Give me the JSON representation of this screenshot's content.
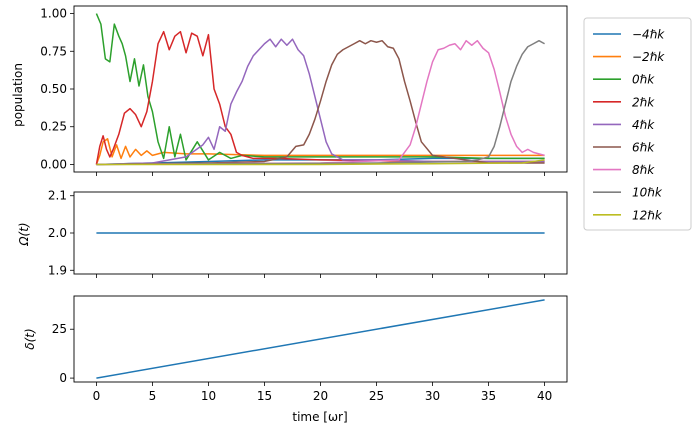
{
  "chart_data": [
    {
      "type": "line",
      "ylabel": "population",
      "xlim": [
        -2,
        42
      ],
      "ylim": [
        -0.05,
        1.05
      ],
      "xticks": [
        0,
        5,
        10,
        15,
        20,
        25,
        30,
        35,
        40
      ],
      "yticks": [
        0.0,
        0.25,
        0.5,
        0.75,
        1.0
      ],
      "ytick_labels": [
        "0.00",
        "0.25",
        "0.50",
        "0.75",
        "1.00"
      ],
      "legend_position": "outside right, top",
      "series": [
        {
          "name": "−4ℏk",
          "color": "#1f77b4",
          "x": [
            0,
            5,
            10,
            15,
            20,
            25,
            30,
            35,
            40
          ],
          "y": [
            0,
            0.01,
            0.02,
            0.03,
            0.03,
            0.03,
            0.04,
            0.04,
            0.04
          ]
        },
        {
          "name": "−2ℏk",
          "color": "#ff7f0e",
          "x": [
            0,
            0.3,
            0.6,
            1.0,
            1.4,
            1.8,
            2.2,
            2.6,
            3.0,
            3.5,
            4.0,
            4.5,
            5.0,
            6,
            8,
            10,
            15,
            20,
            25,
            30,
            35,
            40
          ],
          "y": [
            0,
            0.06,
            0.15,
            0.17,
            0.05,
            0.13,
            0.04,
            0.12,
            0.05,
            0.1,
            0.06,
            0.09,
            0.06,
            0.08,
            0.07,
            0.07,
            0.06,
            0.06,
            0.06,
            0.06,
            0.06,
            0.06
          ]
        },
        {
          "name": "0ℏk",
          "color": "#2ca02c",
          "x": [
            0,
            0.4,
            0.8,
            1.2,
            1.6,
            2.0,
            2.3,
            2.6,
            3.0,
            3.4,
            3.8,
            4.2,
            4.6,
            5.0,
            5.5,
            6.0,
            6.5,
            7.0,
            7.5,
            8,
            9,
            10,
            11,
            12,
            13,
            15,
            20,
            25,
            30,
            35,
            40
          ],
          "y": [
            1.0,
            0.93,
            0.7,
            0.68,
            0.93,
            0.85,
            0.8,
            0.72,
            0.55,
            0.7,
            0.52,
            0.66,
            0.45,
            0.35,
            0.15,
            0.04,
            0.25,
            0.05,
            0.2,
            0.03,
            0.15,
            0.03,
            0.08,
            0.04,
            0.06,
            0.05,
            0.05,
            0.05,
            0.05,
            0.04,
            0.04
          ]
        },
        {
          "name": "2ℏk",
          "color": "#d62728",
          "x": [
            0,
            0.3,
            0.6,
            0.9,
            1.2,
            1.5,
            2,
            2.5,
            3.0,
            3.5,
            4.0,
            4.5,
            5.0,
            5.5,
            6.0,
            6.5,
            7.0,
            7.5,
            8.0,
            8.5,
            9.0,
            9.5,
            10.0,
            10.5,
            11.0,
            11.5,
            12.0,
            12.5,
            13,
            14,
            16,
            20,
            30,
            40
          ],
          "y": [
            0,
            0.12,
            0.19,
            0.1,
            0.05,
            0.1,
            0.2,
            0.34,
            0.37,
            0.33,
            0.25,
            0.35,
            0.55,
            0.8,
            0.88,
            0.76,
            0.85,
            0.88,
            0.74,
            0.87,
            0.85,
            0.72,
            0.86,
            0.5,
            0.4,
            0.25,
            0.2,
            0.08,
            0.06,
            0.04,
            0.04,
            0.03,
            0.02,
            0.02
          ]
        },
        {
          "name": "4ℏk",
          "color": "#9467bd",
          "x": [
            0,
            5,
            8,
            9.5,
            10,
            10.5,
            11,
            11.5,
            12,
            12.5,
            13,
            13.5,
            14,
            15,
            15.5,
            16,
            16.5,
            17,
            17.5,
            18,
            18.5,
            19,
            19.5,
            20,
            20.5,
            21,
            22,
            25,
            30,
            35,
            40
          ],
          "y": [
            0,
            0.01,
            0.05,
            0.13,
            0.18,
            0.1,
            0.25,
            0.22,
            0.4,
            0.48,
            0.55,
            0.65,
            0.72,
            0.8,
            0.83,
            0.78,
            0.83,
            0.79,
            0.83,
            0.76,
            0.72,
            0.6,
            0.45,
            0.3,
            0.15,
            0.07,
            0.03,
            0.03,
            0.02,
            0.02,
            0.02
          ]
        },
        {
          "name": "6ℏk",
          "color": "#8c564b",
          "x": [
            0,
            10,
            15,
            17,
            17.8,
            18.5,
            19,
            19.5,
            20,
            20.5,
            21,
            21.5,
            22,
            23,
            23.5,
            24,
            24.5,
            25,
            25.5,
            26,
            26.5,
            27,
            27.5,
            28,
            28.5,
            29,
            30,
            35,
            40
          ],
          "y": [
            0,
            0.01,
            0.02,
            0.05,
            0.12,
            0.13,
            0.2,
            0.3,
            0.42,
            0.55,
            0.66,
            0.73,
            0.76,
            0.8,
            0.82,
            0.8,
            0.82,
            0.81,
            0.82,
            0.78,
            0.77,
            0.7,
            0.55,
            0.42,
            0.28,
            0.15,
            0.06,
            0.01,
            0.01
          ]
        },
        {
          "name": "8ℏk",
          "color": "#e377c2",
          "x": [
            0,
            20,
            27,
            28,
            28.5,
            29,
            29.5,
            30,
            30.5,
            31,
            31.5,
            32,
            32.5,
            33,
            33.5,
            34,
            34.5,
            35,
            35.5,
            36,
            36.5,
            37,
            37.5,
            38,
            38.5,
            39,
            39.5,
            40
          ],
          "y": [
            0,
            0.01,
            0.03,
            0.13,
            0.25,
            0.4,
            0.55,
            0.68,
            0.76,
            0.77,
            0.79,
            0.8,
            0.76,
            0.82,
            0.79,
            0.82,
            0.77,
            0.74,
            0.63,
            0.48,
            0.32,
            0.2,
            0.12,
            0.08,
            0.1,
            0.08,
            0.07,
            0.06
          ]
        },
        {
          "name": "10ℏk",
          "color": "#7f7f7f",
          "x": [
            0,
            25,
            33,
            34,
            35,
            35.5,
            36,
            36.5,
            37,
            37.5,
            38,
            38.5,
            39,
            39.5,
            40
          ],
          "y": [
            0,
            0.01,
            0.02,
            0.03,
            0.05,
            0.12,
            0.25,
            0.4,
            0.55,
            0.65,
            0.73,
            0.78,
            0.8,
            0.82,
            0.8
          ]
        },
        {
          "name": "12ℏk",
          "color": "#bcbd22",
          "x": [
            0,
            10,
            20,
            30,
            38,
            39,
            40
          ],
          "y": [
            0,
            0.0,
            0.0,
            0.005,
            0.01,
            0.02,
            0.03
          ]
        }
      ]
    },
    {
      "type": "line",
      "ylabel": "Ω(t)",
      "xlim": [
        -2,
        42
      ],
      "ylim": [
        1.89,
        2.11
      ],
      "yticks": [
        1.9,
        2.0,
        2.1
      ],
      "ytick_labels": [
        "1.9",
        "2.0",
        "2.1"
      ],
      "series": [
        {
          "color": "#1f77b4",
          "x": [
            0,
            40
          ],
          "y": [
            2.0,
            2.0
          ]
        }
      ]
    },
    {
      "type": "line",
      "ylabel": "δ(t)",
      "xlabel": "time [ωr]",
      "xlim": [
        -2,
        42
      ],
      "ylim": [
        -2,
        42
      ],
      "xticks": [
        0,
        5,
        10,
        15,
        20,
        25,
        30,
        35,
        40
      ],
      "xtick_labels": [
        "0",
        "5",
        "10",
        "15",
        "20",
        "25",
        "30",
        "35",
        "40"
      ],
      "yticks": [
        0,
        25
      ],
      "ytick_labels": [
        "0",
        "25"
      ],
      "series": [
        {
          "color": "#1f77b4",
          "x": [
            0,
            40
          ],
          "y": [
            0,
            40
          ]
        }
      ]
    }
  ]
}
